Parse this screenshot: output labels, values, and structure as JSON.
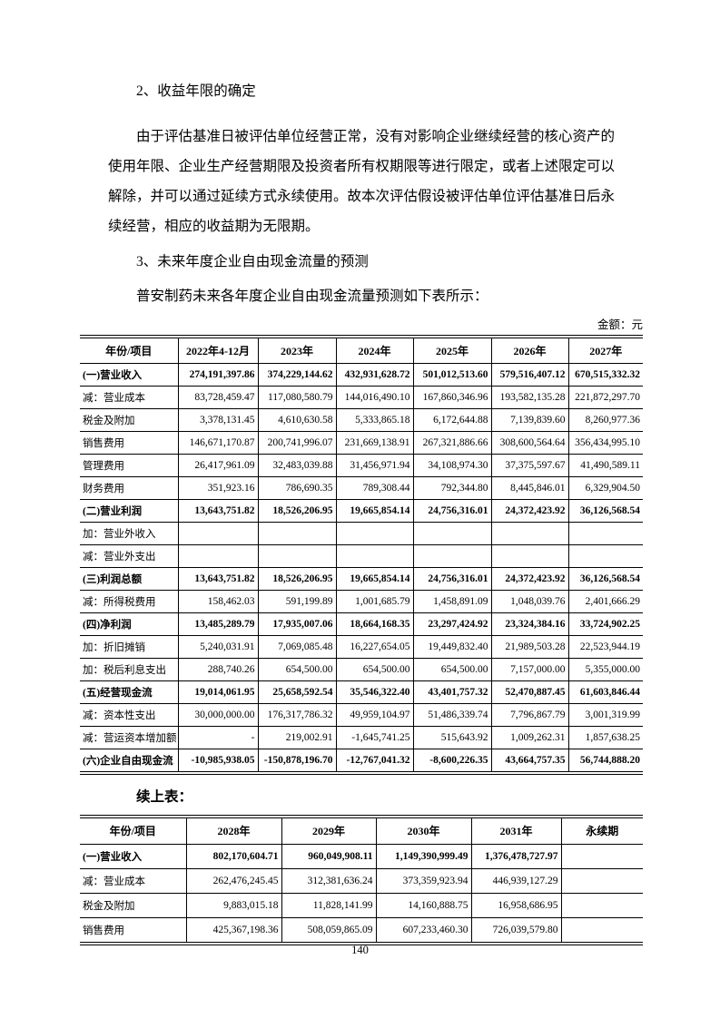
{
  "document": {
    "heading_2": "2、收益年限的确定",
    "paragraph_2": "由于评估基准日被评估单位经营正常，没有对影响企业继续经营的核心资产的使用年限、企业生产经营期限及投资者所有权期限等进行限定，或者上述限定可以解除，并可以通过延续方式永续使用。故本次评估假设被评估单位评估基准日后永续经营，相应的收益期为无限期。",
    "heading_3": "3、未来年度企业自由现金流量的预测",
    "paragraph_3": "普安制药未来各年度企业自由现金流量预测如下表所示：",
    "amount_unit": "金额：元",
    "continuation_label": "续上表：",
    "page_number": "140"
  },
  "table1": {
    "headers": [
      "年份/项目",
      "2022年4-12月",
      "2023年",
      "2024年",
      "2025年",
      "2026年",
      "2027年"
    ],
    "rows": [
      {
        "label": "(一)营业收入",
        "bold": true,
        "values": [
          "274,191,397.86",
          "374,229,144.62",
          "432,931,628.72",
          "501,012,513.60",
          "579,516,407.12",
          "670,515,332.32"
        ]
      },
      {
        "label": "减：营业成本",
        "bold": false,
        "values": [
          "83,728,459.47",
          "117,080,580.79",
          "144,016,490.10",
          "167,860,346.96",
          "193,582,135.28",
          "221,872,297.70"
        ]
      },
      {
        "label": "税金及附加",
        "bold": false,
        "values": [
          "3,378,131.45",
          "4,610,630.58",
          "5,333,865.18",
          "6,172,644.88",
          "7,139,839.60",
          "8,260,977.36"
        ]
      },
      {
        "label": "销售费用",
        "bold": false,
        "values": [
          "146,671,170.87",
          "200,741,996.07",
          "231,669,138.91",
          "267,321,886.66",
          "308,600,564.64",
          "356,434,995.10"
        ]
      },
      {
        "label": "管理费用",
        "bold": false,
        "values": [
          "26,417,961.09",
          "32,483,039.88",
          "31,456,971.94",
          "34,108,974.30",
          "37,375,597.67",
          "41,490,589.11"
        ]
      },
      {
        "label": "财务费用",
        "bold": false,
        "values": [
          "351,923.16",
          "786,690.35",
          "789,308.44",
          "792,344.80",
          "8,445,846.01",
          "6,329,904.50"
        ]
      },
      {
        "label": "(二)营业利润",
        "bold": true,
        "values": [
          "13,643,751.82",
          "18,526,206.95",
          "19,665,854.14",
          "24,756,316.01",
          "24,372,423.92",
          "36,126,568.54"
        ]
      },
      {
        "label": "加：营业外收入",
        "bold": false,
        "values": [
          "",
          "",
          "",
          "",
          "",
          ""
        ]
      },
      {
        "label": "减：营业外支出",
        "bold": false,
        "values": [
          "",
          "",
          "",
          "",
          "",
          ""
        ]
      },
      {
        "label": "(三)利润总额",
        "bold": true,
        "values": [
          "13,643,751.82",
          "18,526,206.95",
          "19,665,854.14",
          "24,756,316.01",
          "24,372,423.92",
          "36,126,568.54"
        ]
      },
      {
        "label": "减：所得税费用",
        "bold": false,
        "values": [
          "158,462.03",
          "591,199.89",
          "1,001,685.79",
          "1,458,891.09",
          "1,048,039.76",
          "2,401,666.29"
        ]
      },
      {
        "label": "(四)净利润",
        "bold": true,
        "values": [
          "13,485,289.79",
          "17,935,007.06",
          "18,664,168.35",
          "23,297,424.92",
          "23,324,384.16",
          "33,724,902.25"
        ]
      },
      {
        "label": "加：折旧摊销",
        "bold": false,
        "values": [
          "5,240,031.91",
          "7,069,085.48",
          "16,227,654.05",
          "19,449,832.40",
          "21,989,503.28",
          "22,523,944.19"
        ]
      },
      {
        "label": "加：税后利息支出",
        "bold": false,
        "values": [
          "288,740.26",
          "654,500.00",
          "654,500.00",
          "654,500.00",
          "7,157,000.00",
          "5,355,000.00"
        ]
      },
      {
        "label": "(五)经营现金流",
        "bold": true,
        "values": [
          "19,014,061.95",
          "25,658,592.54",
          "35,546,322.40",
          "43,401,757.32",
          "52,470,887.45",
          "61,603,846.44"
        ]
      },
      {
        "label": "减：资本性支出",
        "bold": false,
        "values": [
          "30,000,000.00",
          "176,317,786.32",
          "49,959,104.97",
          "51,486,339.74",
          "7,796,867.79",
          "3,001,319.99"
        ]
      },
      {
        "label": "减：营运资本增加额",
        "bold": false,
        "values": [
          "-",
          "219,002.91",
          "-1,645,741.25",
          "515,643.92",
          "1,009,262.31",
          "1,857,638.25"
        ]
      },
      {
        "label": "(六)企业自由现金流",
        "bold": true,
        "values": [
          "-10,985,938.05",
          "-150,878,196.70",
          "-12,767,041.32",
          "-8,600,226.35",
          "43,664,757.35",
          "56,744,888.20"
        ]
      }
    ]
  },
  "table2": {
    "headers": [
      "年份/项目",
      "2028年",
      "2029年",
      "2030年",
      "2031年",
      "永续期"
    ],
    "rows": [
      {
        "label": "(一)营业收入",
        "bold": true,
        "values": [
          "802,170,604.71",
          "960,049,908.11",
          "1,149,390,999.49",
          "1,376,478,727.97",
          ""
        ]
      },
      {
        "label": "减：营业成本",
        "bold": false,
        "values": [
          "262,476,245.45",
          "312,381,636.24",
          "373,359,923.94",
          "446,939,127.29",
          ""
        ]
      },
      {
        "label": "税金及附加",
        "bold": false,
        "values": [
          "9,883,015.18",
          "11,828,141.99",
          "14,160,888.75",
          "16,958,686.95",
          ""
        ]
      },
      {
        "label": "销售费用",
        "bold": false,
        "values": [
          "425,367,198.36",
          "508,059,865.09",
          "607,233,460.30",
          "726,039,579.80",
          ""
        ]
      }
    ]
  }
}
